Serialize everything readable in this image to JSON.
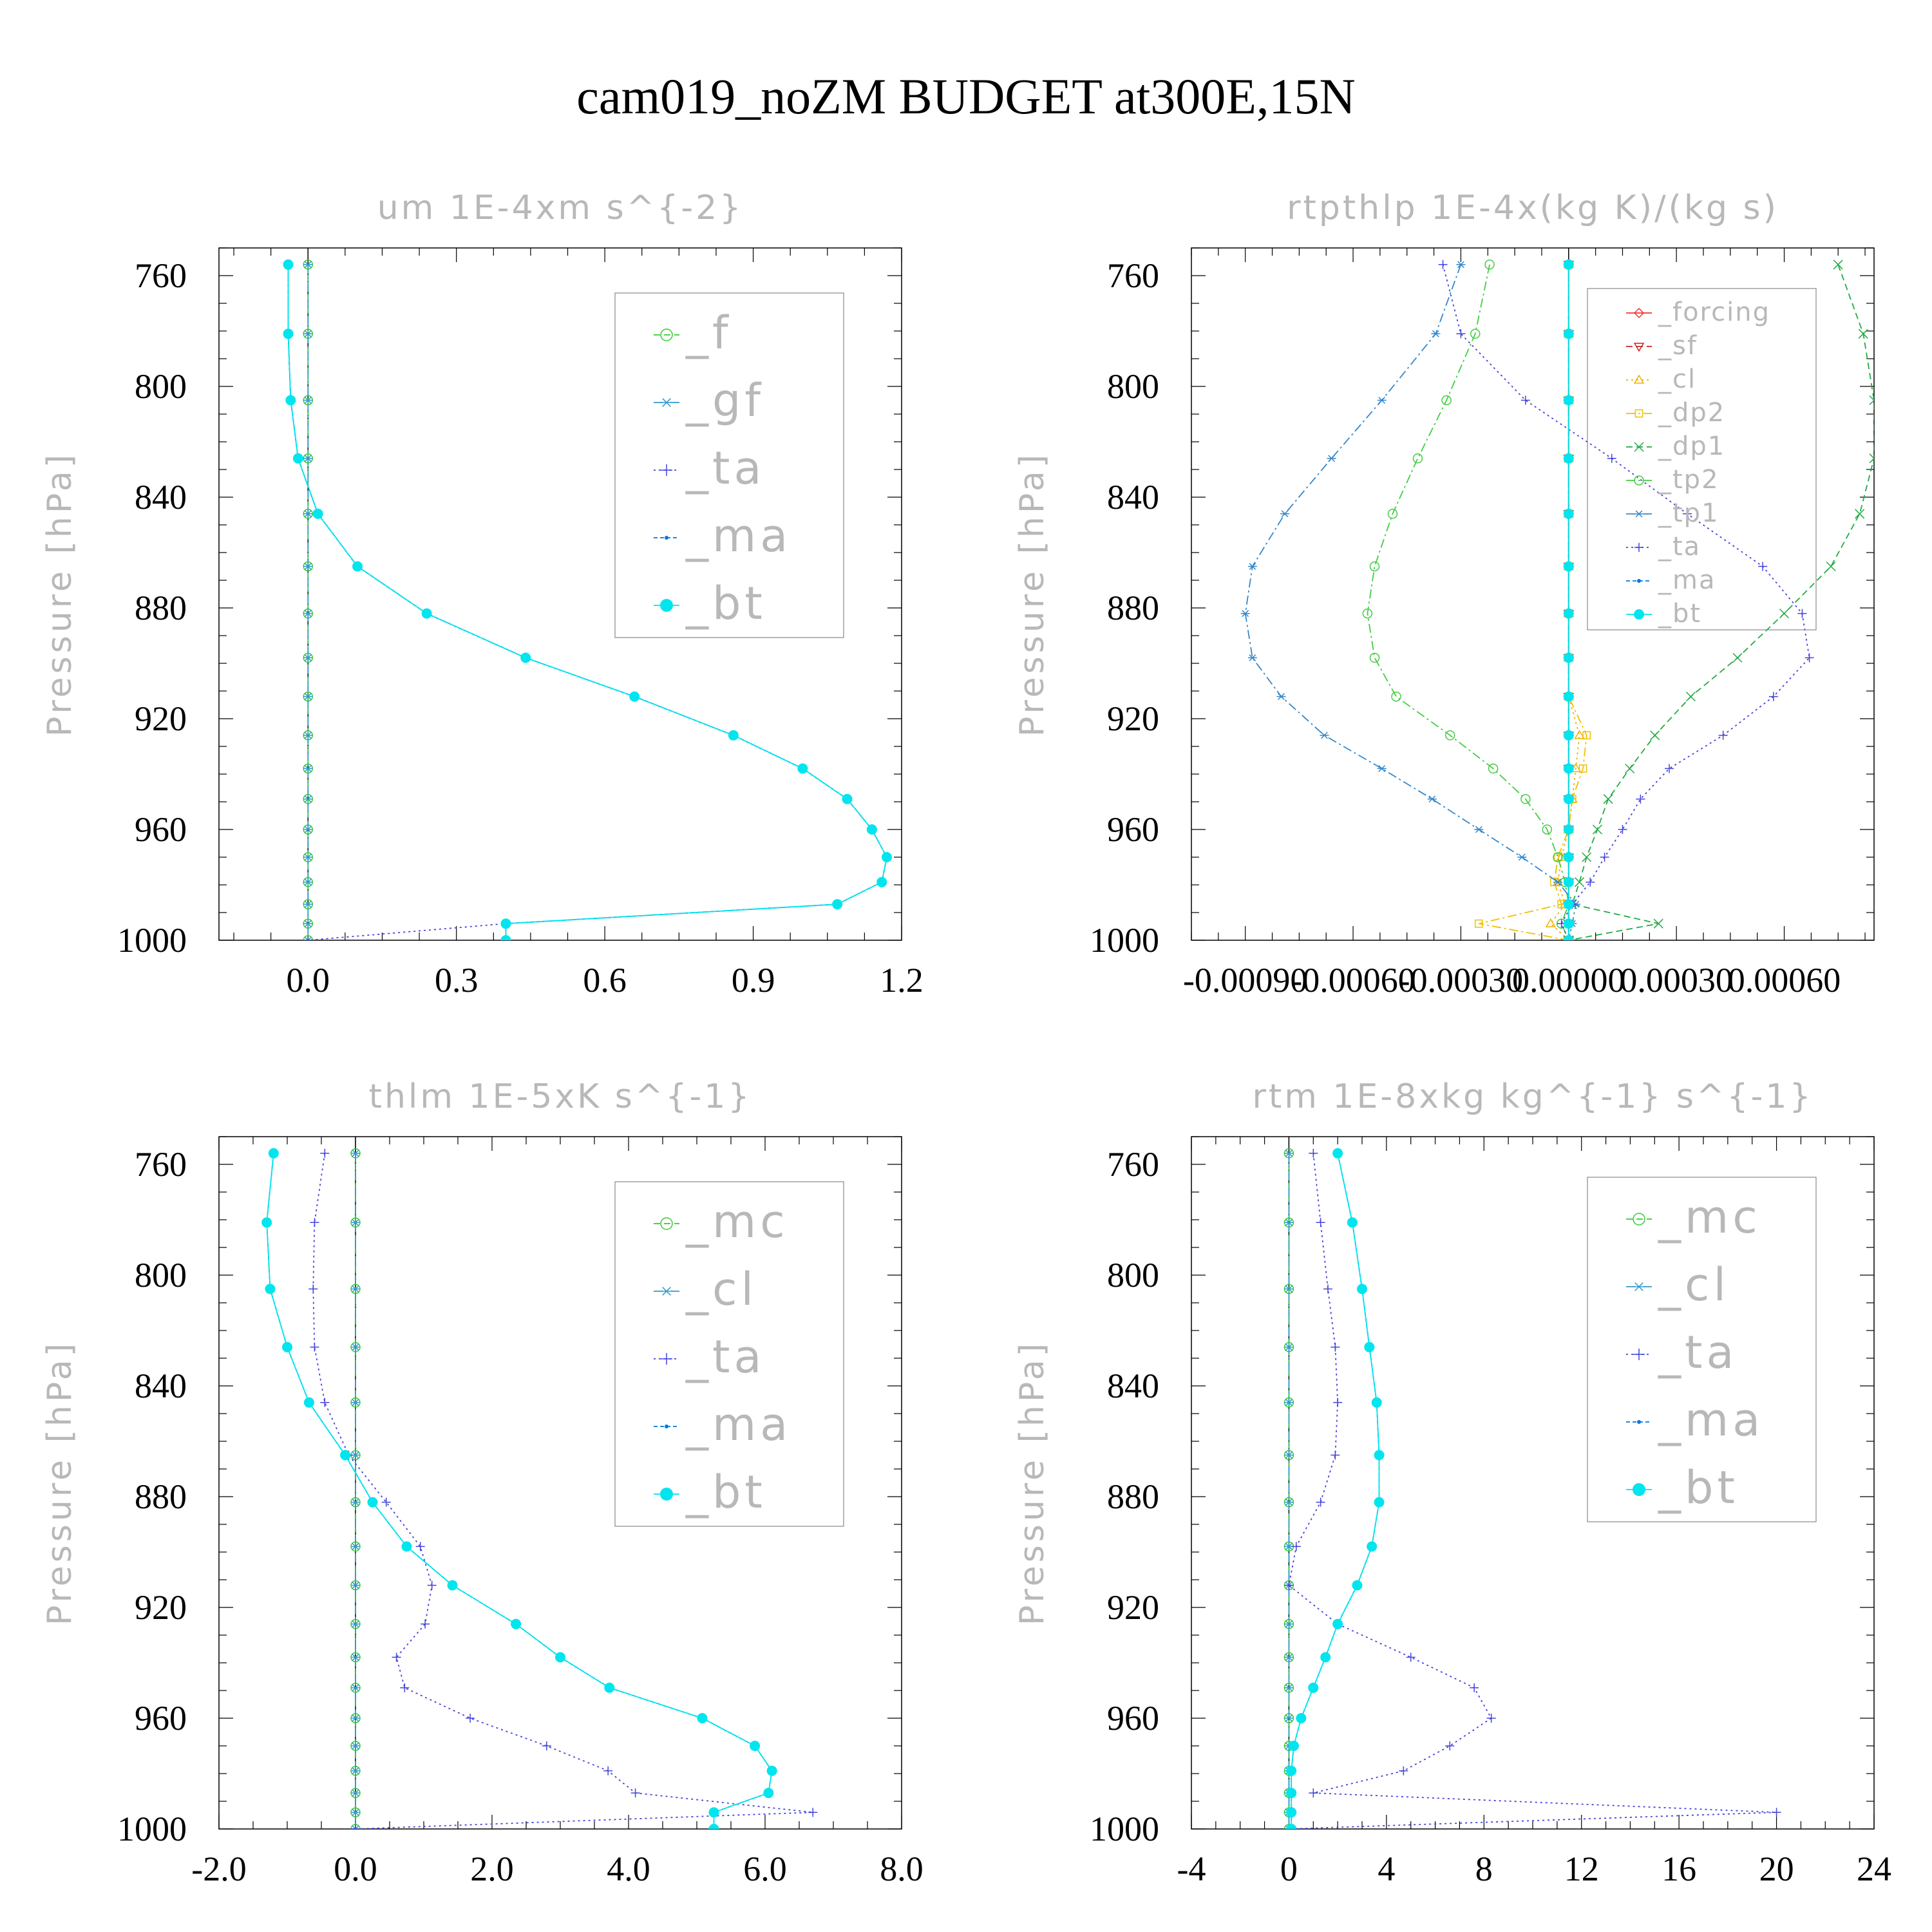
{
  "figure": {
    "title": "cam019_noZM  BUDGET at300E,15N"
  },
  "colors": {
    "axis": "#000000",
    "label_gray": "#b8b8b8",
    "legend_frame": "#888888",
    "_f": "#33cc33",
    "_gf": "#3399cc",
    "_ta": "#4444dd",
    "_ma": "#0077dd",
    "_bt": "#00e5ee",
    "_forcing": "#ee3333",
    "_sf": "#cc2222",
    "_cl": "#3399cc",
    "_cl_orange": "#f0b000",
    "_dp2": "#f0c000",
    "_dp1": "#22aa44",
    "_tp2": "#44cc44",
    "_tp1": "#3388cc",
    "_mc": "#33cc33"
  },
  "chart_data": [
    {
      "type": "line",
      "id": "um",
      "title": "um   1E-4xm s^{-2}",
      "ylabel": "Pressure [hPa]",
      "xlabel": "",
      "xlim": [
        -0.18,
        1.2
      ],
      "ylim": [
        1000,
        750
      ],
      "xticks": [
        0.0,
        0.3,
        0.6,
        0.9,
        1.2
      ],
      "xtick_labels": [
        "0.0",
        "0.3",
        "0.6",
        "0.9",
        "1.2"
      ],
      "yticks": [
        760,
        800,
        840,
        880,
        920,
        960,
        1000
      ],
      "ytick_labels": [
        "760",
        "800",
        "840",
        "880",
        "920",
        "960",
        "1000"
      ],
      "y": [
        756,
        781,
        805,
        826,
        846,
        865,
        882,
        898,
        912,
        926,
        938,
        949,
        960,
        970,
        979,
        987,
        994,
        1000
      ],
      "legend_position": "top-right",
      "series": [
        {
          "name": "_f",
          "key": "_f",
          "marker": "circle-open",
          "dash": "10,6",
          "values": [
            0,
            0,
            0,
            0,
            0,
            0,
            0,
            0,
            0,
            0,
            0,
            0,
            0,
            0,
            0,
            0,
            0,
            0
          ]
        },
        {
          "name": "_gf",
          "key": "_gf",
          "marker": "star",
          "dash": "14,5,3,5",
          "values": [
            0,
            0,
            0,
            0,
            0,
            0,
            0,
            0,
            0,
            0,
            0,
            0,
            0,
            0,
            0,
            0,
            0,
            0
          ]
        },
        {
          "name": "_ta",
          "key": "_ta",
          "marker": "plus",
          "dash": "3,5",
          "values": [
            -0.04,
            -0.04,
            -0.035,
            -0.02,
            0.02,
            0.1,
            0.24,
            0.44,
            0.66,
            0.86,
            1.0,
            1.09,
            1.14,
            1.17,
            1.16,
            1.07,
            0.4,
            0.0
          ]
        },
        {
          "name": "_ma",
          "key": "_ma",
          "marker": "dot-small",
          "dash": "6,4",
          "values": [
            -0.04,
            -0.04,
            -0.035,
            -0.02,
            0.02,
            0.1,
            0.24,
            0.44,
            0.66,
            0.86,
            1.0,
            1.09,
            1.14,
            1.17,
            1.16,
            1.07,
            0.4,
            0.4
          ]
        },
        {
          "name": "_bt",
          "key": "_bt",
          "marker": "dot",
          "dash": "",
          "values": [
            -0.04,
            -0.04,
            -0.035,
            -0.02,
            0.02,
            0.1,
            0.24,
            0.44,
            0.66,
            0.86,
            1.0,
            1.09,
            1.14,
            1.17,
            1.16,
            1.07,
            0.4,
            0.4
          ]
        }
      ]
    },
    {
      "type": "line",
      "id": "rtpthlp",
      "title": "rtpthlp   1E-4x(kg K)/(kg s)",
      "ylabel": "Pressure [hPa]",
      "xlabel": "",
      "xlim": [
        -0.00105,
        0.00085
      ],
      "ylim": [
        1000,
        750
      ],
      "xticks": [
        -0.0009,
        -0.0006,
        -0.0003,
        0.0,
        0.0003,
        0.0006
      ],
      "xtick_labels": [
        "-0.00090",
        "-0.00060",
        "-0.00030",
        "0.00000",
        "0.00030",
        "0.00060"
      ],
      "yticks": [
        760,
        800,
        840,
        880,
        920,
        960,
        1000
      ],
      "ytick_labels": [
        "760",
        "800",
        "840",
        "880",
        "920",
        "960",
        "1000"
      ],
      "y": [
        756,
        781,
        805,
        826,
        846,
        865,
        882,
        898,
        912,
        926,
        938,
        949,
        960,
        970,
        979,
        987,
        994,
        1000
      ],
      "legend_position": "top-right",
      "series": [
        {
          "name": "_forcing",
          "key": "_forcing",
          "marker": "diamond",
          "dash": "",
          "values": [
            0,
            0,
            0,
            0,
            0,
            0,
            0,
            0,
            0,
            0,
            0,
            0,
            0,
            0,
            0,
            0,
            0,
            0
          ]
        },
        {
          "name": "_sf",
          "key": "_sf",
          "marker": "triangle-down",
          "dash": "10,6",
          "values": [
            0,
            0,
            0,
            0,
            0,
            0,
            0,
            0,
            0,
            0,
            0,
            0,
            0,
            0,
            0,
            0,
            0,
            0
          ]
        },
        {
          "name": "_cl",
          "key": "_cl_orange",
          "marker": "triangle-up",
          "dash": "3,5",
          "values": [
            0,
            0,
            0,
            0,
            0,
            0,
            0,
            0,
            0,
            3e-05,
            2e-05,
            1e-05,
            0,
            -2e-05,
            -3e-05,
            -1e-05,
            -5e-05,
            0
          ]
        },
        {
          "name": "_dp2",
          "key": "_dp2",
          "marker": "square",
          "dash": "14,5,3,5",
          "values": [
            0,
            0,
            0,
            0,
            0,
            0,
            0,
            0,
            0,
            5e-05,
            4e-05,
            1e-05,
            0,
            -3e-05,
            -4e-05,
            -2e-05,
            -0.00025,
            0
          ]
        },
        {
          "name": "_dp1",
          "key": "_dp1",
          "marker": "x",
          "dash": "10,6",
          "values": [
            0.00075,
            0.00082,
            0.00085,
            0.00085,
            0.00081,
            0.00073,
            0.0006,
            0.00047,
            0.00034,
            0.00024,
            0.00017,
            0.00011,
            8e-05,
            5e-05,
            3e-05,
            1e-05,
            0.00025,
            0
          ]
        },
        {
          "name": "_tp2",
          "key": "_tp2",
          "marker": "circle-open",
          "dash": "14,5,3,5",
          "values": [
            -0.00022,
            -0.00026,
            -0.00034,
            -0.00042,
            -0.00049,
            -0.00054,
            -0.00056,
            -0.00054,
            -0.00048,
            -0.00033,
            -0.00021,
            -0.00012,
            -6e-05,
            -3e-05,
            -1e-05,
            0,
            -2e-05,
            0
          ]
        },
        {
          "name": "_tp1",
          "key": "_tp1",
          "marker": "star",
          "dash": "14,5,3,5",
          "values": [
            -0.0003,
            -0.00037,
            -0.00052,
            -0.00066,
            -0.00079,
            -0.00088,
            -0.0009,
            -0.00088,
            -0.0008,
            -0.00068,
            -0.00052,
            -0.00038,
            -0.00025,
            -0.00013,
            -3e-05,
            2e-05,
            1e-05,
            0
          ]
        },
        {
          "name": "_ta",
          "key": "_ta",
          "marker": "plus",
          "dash": "3,5",
          "values": [
            -0.00035,
            -0.0003,
            -0.00012,
            0.00012,
            0.00033,
            0.00054,
            0.00065,
            0.00067,
            0.00057,
            0.00043,
            0.00028,
            0.0002,
            0.00015,
            0.0001,
            6e-05,
            1e-05,
            -2e-05,
            0
          ]
        },
        {
          "name": "_ma",
          "key": "_ma",
          "marker": "dot-small",
          "dash": "6,4",
          "values": [
            0,
            0,
            0,
            0,
            0,
            0,
            0,
            0,
            0,
            0,
            0,
            0,
            0,
            0,
            0,
            0,
            0,
            0
          ]
        },
        {
          "name": "_bt",
          "key": "_bt",
          "marker": "dot",
          "dash": "",
          "values": [
            0,
            0,
            0,
            0,
            0,
            0,
            0,
            0,
            0,
            0,
            0,
            0,
            0,
            0,
            0,
            0,
            0,
            0
          ]
        }
      ]
    },
    {
      "type": "line",
      "id": "thlm",
      "title": "thlm   1E-5xK s^{-1}",
      "ylabel": "Pressure [hPa]",
      "xlabel": "",
      "xlim": [
        -2.0,
        8.0
      ],
      "ylim": [
        1000,
        750
      ],
      "xticks": [
        -2.0,
        0.0,
        2.0,
        4.0,
        6.0,
        8.0
      ],
      "xtick_labels": [
        "-2.0",
        "0.0",
        "2.0",
        "4.0",
        "6.0",
        "8.0"
      ],
      "yticks": [
        760,
        800,
        840,
        880,
        920,
        960,
        1000
      ],
      "ytick_labels": [
        "760",
        "800",
        "840",
        "880",
        "920",
        "960",
        "1000"
      ],
      "y": [
        756,
        781,
        805,
        826,
        846,
        865,
        882,
        898,
        912,
        926,
        938,
        949,
        960,
        970,
        979,
        987,
        994,
        1000
      ],
      "legend_position": "top-right",
      "series": [
        {
          "name": "_mc",
          "key": "_mc",
          "marker": "circle-open",
          "dash": "10,6",
          "values": [
            0,
            0,
            0,
            0,
            0,
            0,
            0,
            0,
            0,
            0,
            0,
            0,
            0,
            0,
            0,
            0,
            0,
            0
          ]
        },
        {
          "name": "_cl",
          "key": "_cl",
          "marker": "star",
          "dash": "14,5,3,5",
          "values": [
            0,
            0,
            0,
            0,
            0,
            0,
            0,
            0,
            0,
            0,
            0,
            0,
            0,
            0,
            0,
            0,
            0,
            0
          ]
        },
        {
          "name": "_ta",
          "key": "_ta",
          "marker": "plus",
          "dash": "3,5",
          "values": [
            -0.45,
            -0.6,
            -0.62,
            -0.6,
            -0.45,
            -0.1,
            0.45,
            0.95,
            1.12,
            1.02,
            0.6,
            0.72,
            1.68,
            2.8,
            3.7,
            4.1,
            6.7,
            0
          ]
        },
        {
          "name": "_ma",
          "key": "_ma",
          "marker": "dot-small",
          "dash": "6,4",
          "values": [
            -1.2,
            -1.3,
            -1.25,
            -1.0,
            -0.68,
            -0.15,
            0.25,
            0.75,
            1.42,
            2.35,
            3.0,
            3.72,
            5.08,
            5.85,
            6.1,
            6.05,
            5.25,
            5.25
          ]
        },
        {
          "name": "_bt",
          "key": "_bt",
          "marker": "dot",
          "dash": "",
          "values": [
            -1.2,
            -1.3,
            -1.25,
            -1.0,
            -0.68,
            -0.15,
            0.25,
            0.75,
            1.42,
            2.35,
            3.0,
            3.72,
            5.08,
            5.85,
            6.1,
            6.05,
            5.25,
            5.25
          ]
        }
      ]
    },
    {
      "type": "line",
      "id": "rtm",
      "title": "rtm   1E-8xkg kg^{-1} s^{-1}",
      "ylabel": "Pressure [hPa]",
      "xlabel": "",
      "xlim": [
        -4,
        24
      ],
      "ylim": [
        1000,
        750
      ],
      "xticks": [
        -4,
        0,
        4,
        8,
        12,
        16,
        20,
        24
      ],
      "xtick_labels": [
        "-4",
        "0",
        "4",
        "8",
        "12",
        "16",
        "20",
        "24"
      ],
      "yticks": [
        760,
        800,
        840,
        880,
        920,
        960,
        1000
      ],
      "ytick_labels": [
        "760",
        "800",
        "840",
        "880",
        "920",
        "960",
        "1000"
      ],
      "y": [
        756,
        781,
        805,
        826,
        846,
        865,
        882,
        898,
        912,
        926,
        938,
        949,
        960,
        970,
        979,
        987,
        994,
        1000
      ],
      "legend_position": "top-right",
      "series": [
        {
          "name": "_mc",
          "key": "_mc",
          "marker": "circle-open",
          "dash": "10,6",
          "values": [
            0,
            0,
            0,
            0,
            0,
            0,
            0,
            0,
            0,
            0,
            0,
            0,
            0,
            0,
            0,
            0,
            0,
            0
          ]
        },
        {
          "name": "_cl",
          "key": "_cl",
          "marker": "star",
          "dash": "14,5,3,5",
          "values": [
            0,
            0,
            0,
            0,
            0,
            0,
            0,
            0,
            0,
            0,
            0,
            0,
            0,
            0,
            0,
            0,
            0,
            0
          ]
        },
        {
          "name": "_ta",
          "key": "_ta",
          "marker": "plus",
          "dash": "3,5",
          "values": [
            1.0,
            1.3,
            1.6,
            1.9,
            2.0,
            1.9,
            1.3,
            0.3,
            0.0,
            2.0,
            5.0,
            7.6,
            8.3,
            6.6,
            4.7,
            1.0,
            20.0,
            0.0
          ]
        },
        {
          "name": "_ma",
          "key": "_ma",
          "marker": "dot-small",
          "dash": "6,4",
          "values": [
            2.0,
            2.6,
            3.0,
            3.3,
            3.6,
            3.7,
            3.7,
            3.4,
            2.8,
            2.0,
            1.5,
            1.0,
            0.5,
            0.2,
            0.1,
            0.1,
            0.1,
            0.1
          ]
        },
        {
          "name": "_bt",
          "key": "_bt",
          "marker": "dot",
          "dash": "",
          "values": [
            2.0,
            2.6,
            3.0,
            3.3,
            3.6,
            3.7,
            3.7,
            3.4,
            2.8,
            2.0,
            1.5,
            1.0,
            0.5,
            0.2,
            0.1,
            0.1,
            0.1,
            0.1
          ]
        }
      ]
    }
  ]
}
